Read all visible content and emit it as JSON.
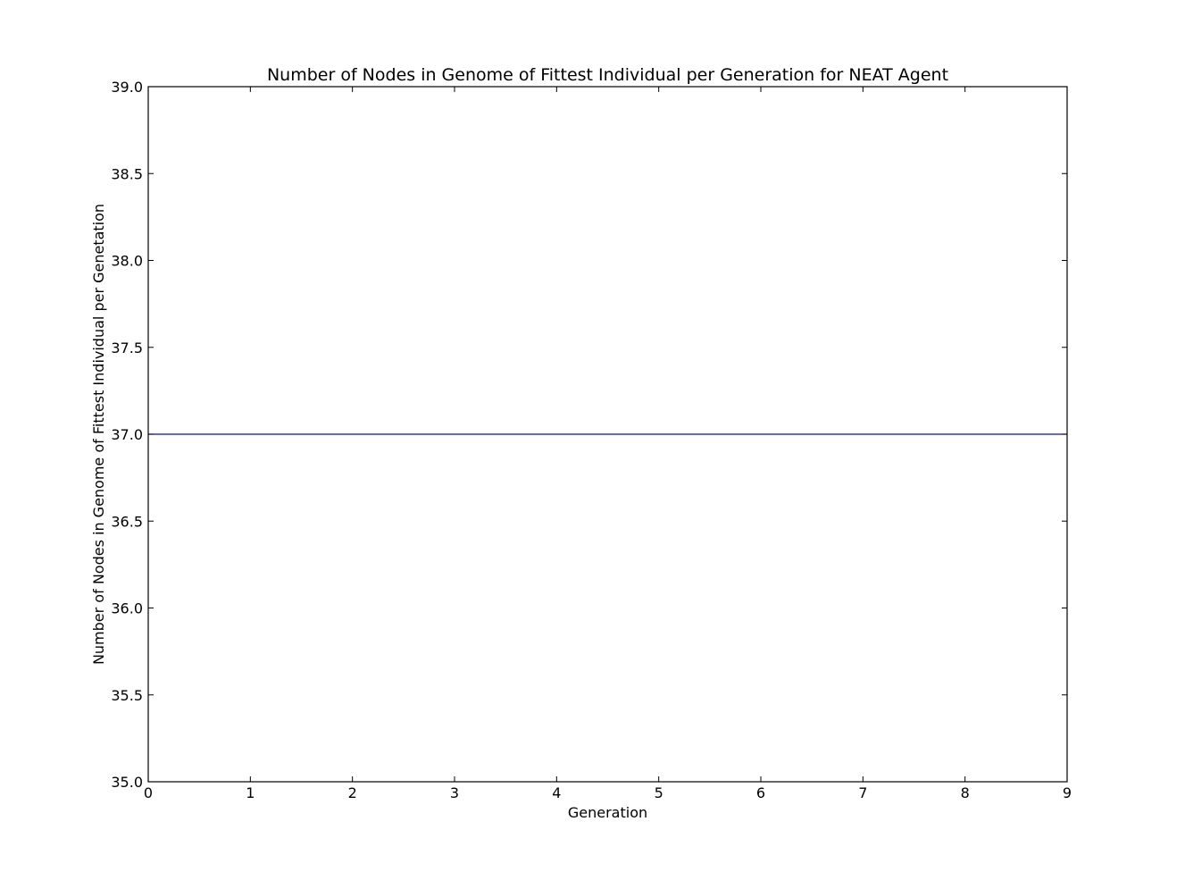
{
  "chart_data": {
    "type": "line",
    "title": "Number of Nodes in Genome of Fittest Individual per Generation for NEAT Agent",
    "xlabel": "Generation",
    "ylabel": "Number of Nodes in Genome of Fittest Individual per Genetation",
    "xlim": [
      0,
      9
    ],
    "ylim": [
      35.0,
      39.0
    ],
    "x_ticks": [
      "0",
      "1",
      "2",
      "3",
      "4",
      "5",
      "6",
      "7",
      "8",
      "9"
    ],
    "y_ticks": [
      "35.0",
      "35.5",
      "36.0",
      "36.5",
      "37.0",
      "37.5",
      "38.0",
      "38.5",
      "39.0"
    ],
    "grid": false,
    "series": [
      {
        "color": "#0000ff",
        "x": [
          0,
          1,
          2,
          3,
          4,
          5,
          6,
          7,
          8,
          9
        ],
        "y": [
          37,
          37,
          37,
          37,
          37,
          37,
          37,
          37,
          37,
          37
        ]
      }
    ]
  }
}
